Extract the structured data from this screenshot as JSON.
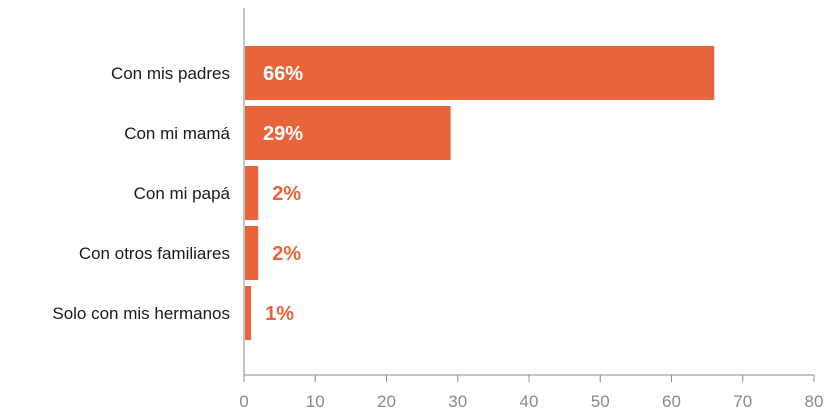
{
  "chart_data": {
    "type": "bar",
    "orientation": "horizontal",
    "categories": [
      "Con mis padres",
      "Con mi mamá",
      "Con mi papá",
      "Con otros familiares",
      "Solo con mis hermanos"
    ],
    "values": [
      66,
      29,
      2,
      2,
      1
    ],
    "data_labels": [
      "66%",
      "29%",
      "2%",
      "2%",
      "1%"
    ],
    "xlim": [
      0,
      80
    ],
    "x_ticks": [
      0,
      10,
      20,
      30,
      40,
      50,
      60,
      70,
      80
    ],
    "grid": false,
    "colors": {
      "bar": "#e8643a",
      "label_inside": "#ffffff",
      "label_outside": "#e8643a",
      "axis": "#8a8a8a"
    }
  }
}
